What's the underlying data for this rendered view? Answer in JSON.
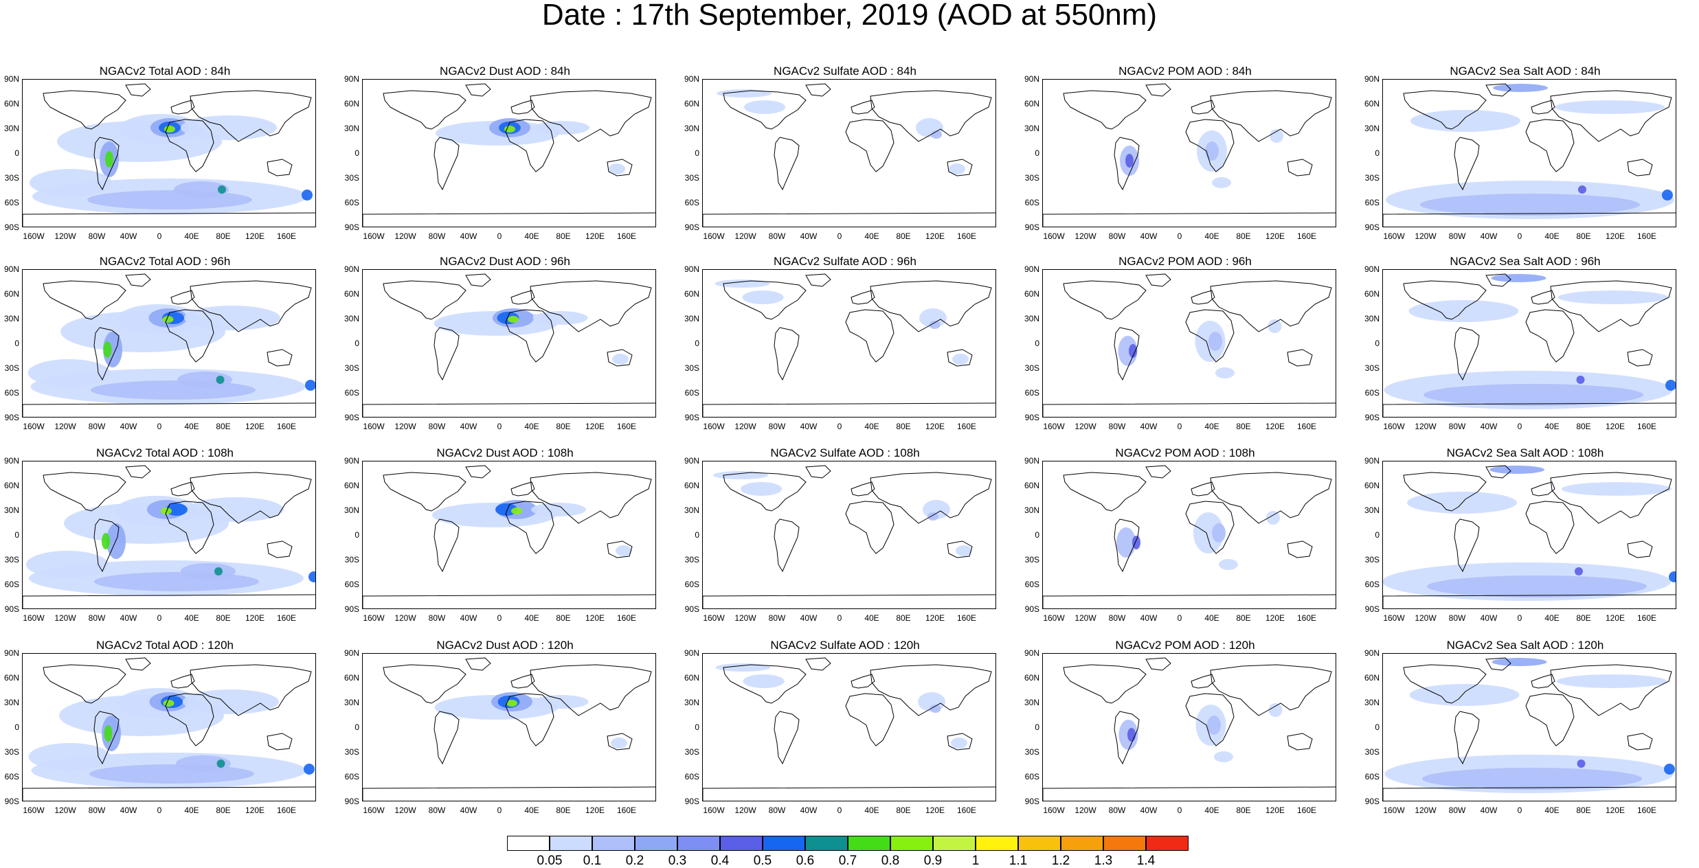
{
  "title": "Date : 17th September, 2019 (AOD at 550nm)",
  "lat_labels": [
    "90N",
    "60N",
    "30N",
    "0",
    "30S",
    "60S",
    "90S"
  ],
  "lon_labels": [
    "160W",
    "120W",
    "80W",
    "40W",
    "0",
    "40E",
    "80E",
    "120E",
    "160E"
  ],
  "rows": [
    {
      "panels": [
        {
          "title": "NGACv2 Total AOD : 84h",
          "field": "total"
        },
        {
          "title": "NGACv2 Dust AOD : 84h",
          "field": "dust"
        },
        {
          "title": "NGACv2 Sulfate AOD : 84h",
          "field": "sulfate"
        },
        {
          "title": "NGACv2 POM AOD : 84h",
          "field": "pom"
        },
        {
          "title": "NGACv2 Sea Salt AOD : 84h",
          "field": "seasalt"
        }
      ]
    },
    {
      "panels": [
        {
          "title": "NGACv2 Total AOD : 96h",
          "field": "total"
        },
        {
          "title": "NGACv2 Dust AOD : 96h",
          "field": "dust"
        },
        {
          "title": "NGACv2 Sulfate AOD : 96h",
          "field": "sulfate"
        },
        {
          "title": "NGACv2 POM AOD : 96h",
          "field": "pom"
        },
        {
          "title": "NGACv2 Sea Salt AOD : 96h",
          "field": "seasalt"
        }
      ]
    },
    {
      "panels": [
        {
          "title": "NGACv2 Total AOD : 108h",
          "field": "total"
        },
        {
          "title": "NGACv2 Dust AOD : 108h",
          "field": "dust"
        },
        {
          "title": "NGACv2 Sulfate AOD : 108h",
          "field": "sulfate"
        },
        {
          "title": "NGACv2 POM AOD : 108h",
          "field": "pom"
        },
        {
          "title": "NGACv2 Sea Salt AOD : 108h",
          "field": "seasalt"
        }
      ]
    },
    {
      "panels": [
        {
          "title": "NGACv2 Total AOD : 120h",
          "field": "total"
        },
        {
          "title": "NGACv2 Dust AOD : 120h",
          "field": "dust"
        },
        {
          "title": "NGACv2 Sulfate AOD : 120h",
          "field": "sulfate"
        },
        {
          "title": "NGACv2 POM AOD : 120h",
          "field": "pom"
        },
        {
          "title": "NGACv2 Sea Salt  AOD : 120h",
          "field": "seasalt"
        }
      ]
    }
  ],
  "colorbar": {
    "labels": [
      "0.05",
      "0.1",
      "0.2",
      "0.3",
      "0.4",
      "0.5",
      "0.6",
      "0.7",
      "0.8",
      "0.9",
      "1",
      "1.1",
      "1.2",
      "1.3",
      "1.4"
    ],
    "colors": [
      "#ffffff",
      "#ccdcff",
      "#aebff9",
      "#8fa8f6",
      "#7d8ff2",
      "#5b5ee6",
      "#1666f2",
      "#0e9090",
      "#44dc16",
      "#88f00e",
      "#c4f442",
      "#fff20c",
      "#f8c20c",
      "#f6a00c",
      "#f4780c",
      "#f02a14"
    ]
  }
}
